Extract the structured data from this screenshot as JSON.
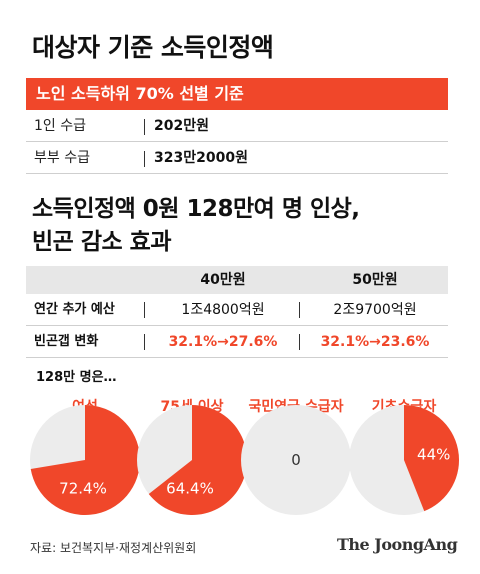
{
  "title": "대상자 기준 소득인정액",
  "criteria": {
    "header": "노인 소득하위 70% 선별 기준",
    "rows": [
      {
        "label": "1인 수급",
        "value": "202만원"
      },
      {
        "label": "부부 수급",
        "value": "323만2000원"
      }
    ]
  },
  "headline": {
    "line1": "소득인정액 0원 128만여 명 인상,",
    "line2": "빈곤 감소 효과"
  },
  "table": {
    "columns": [
      "40만원",
      "50만원"
    ],
    "rows": [
      {
        "label": "연간 추가 예산",
        "values": [
          "1조4800억원",
          "2조9700억원"
        ],
        "highlight": false
      },
      {
        "label": "빈곤갭 변화",
        "values": [
          "32.1%→27.6%",
          "32.1%→23.6%"
        ],
        "highlight": true
      }
    ]
  },
  "pies_title": "128만 명은…",
  "chart_data": {
    "type": "pie",
    "charts": [
      {
        "name": "여성",
        "value": 72.4,
        "label": "72.4%"
      },
      {
        "name": "75세 이상",
        "value": 64.4,
        "label": "64.4%"
      },
      {
        "name": "국민연금 수급자",
        "value": 0,
        "label": "0"
      },
      {
        "name": "기초수급자",
        "value": 44,
        "label": "44%"
      }
    ]
  },
  "colors": {
    "accent": "#f0472a",
    "pie_bg": "#ececec",
    "header_bg": "#e7e7e7"
  },
  "source": "자료: 보건복지부·재정계산위원회",
  "brand": "The JoongAng"
}
